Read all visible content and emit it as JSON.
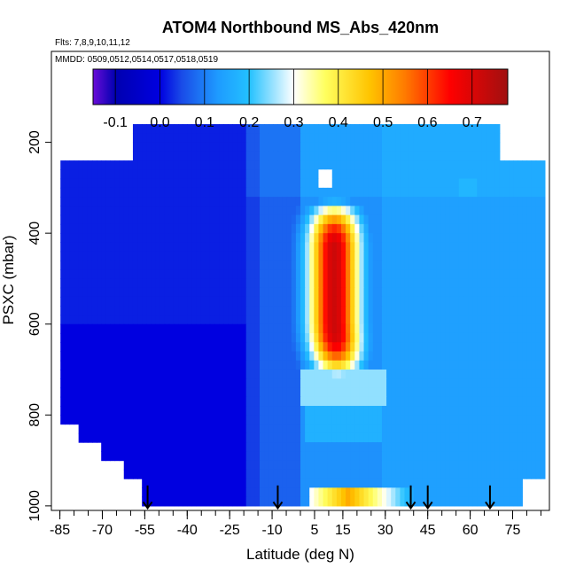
{
  "chart_data": {
    "type": "heatmap",
    "title": "ATOM4 Northbound MS_Abs_420nm",
    "subtitle_flights": "Flts: 7,8,9,10,11,12",
    "subtitle_dates": "MMDD: 0509,0512,0514,0517,0518,0519",
    "xlabel": "Latitude (deg N)",
    "ylabel": "PSXC (mbar)",
    "xlim": [
      -88,
      88
    ],
    "ylim": [
      1010,
      0
    ],
    "x_ticks": [
      -85,
      -70,
      -55,
      -40,
      -25,
      -10,
      5,
      15,
      30,
      45,
      60,
      75
    ],
    "x_tick_labels": [
      "-85",
      "-70",
      "-55",
      "-40",
      "-25",
      "-10",
      "5",
      "15",
      "30",
      "45",
      "60",
      "75"
    ],
    "y_ticks": [
      200,
      400,
      600,
      800,
      1000
    ],
    "y_tick_labels": [
      "200",
      "400",
      "600",
      "800",
      "1000"
    ],
    "colorbar": {
      "range": [
        -0.15,
        0.78
      ],
      "ticks": [
        -0.1,
        0.0,
        0.1,
        0.2,
        0.3,
        0.4,
        0.5,
        0.6,
        0.7
      ],
      "tick_labels": [
        "-0.1",
        "0.0",
        "0.1",
        "0.2",
        "0.3",
        "0.4",
        "0.5",
        "0.6",
        "0.7"
      ],
      "colors": [
        "#6a0dd8",
        "#0000b0",
        "#0000e0",
        "#1a4de8",
        "#1e9bff",
        "#23c1ff",
        "#ffffff",
        "#ffff60",
        "#ffc400",
        "#ff7a00",
        "#ff0000",
        "#a01010"
      ],
      "color_stops": [
        -0.15,
        -0.1,
        0.0,
        0.05,
        0.13,
        0.2,
        0.3,
        0.37,
        0.47,
        0.55,
        0.65,
        0.78
      ]
    },
    "profile_markers_lat": [
      -54,
      -8,
      39,
      45,
      67
    ],
    "background_value": 0.04,
    "plume_core": {
      "lat": 12,
      "pressure_range": [
        360,
        690
      ],
      "peak_value": 0.72
    },
    "surface_band": {
      "lat_range": [
        5,
        40
      ],
      "pressure_range": [
        955,
        1010
      ],
      "peak_value": 0.5
    },
    "data_extent": [
      {
        "p0": 160,
        "p1": 245,
        "x0": -60,
        "x1": 70
      },
      {
        "p0": 245,
        "p1": 820,
        "x0": -85,
        "x1": 86
      },
      {
        "p0": 820,
        "p1": 860,
        "x0": -78,
        "x1": 86
      },
      {
        "p0": 860,
        "p1": 900,
        "x0": -70,
        "x1": 86
      },
      {
        "p0": 900,
        "p1": 950,
        "x0": -63,
        "x1": 86
      },
      {
        "p0": 950,
        "p1": 1010,
        "x0": -56,
        "x1": 78
      }
    ]
  }
}
